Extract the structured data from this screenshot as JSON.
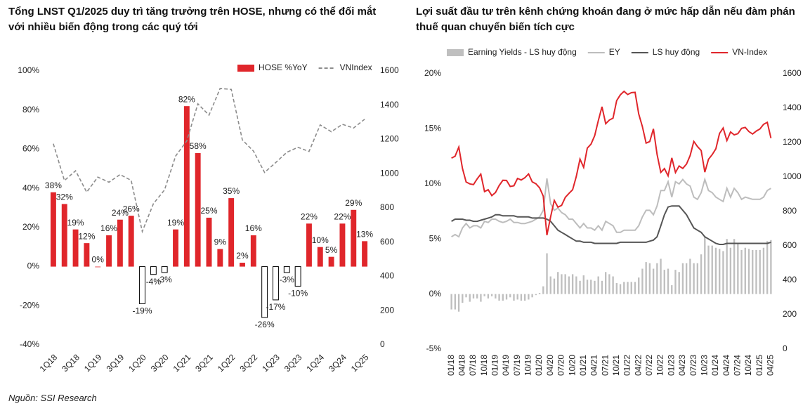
{
  "chart_data": [
    {
      "type": "bar",
      "title": "Tổng LNST Q1/2025 duy trì tăng trưởng trên HOSE, nhưng có thể đối mắt với nhiều biến động trong các quý tới",
      "categories": [
        "1Q18",
        null,
        "3Q18",
        null,
        "1Q19",
        null,
        "3Q19",
        null,
        "1Q20",
        null,
        "3Q20",
        null,
        "1Q21",
        null,
        "3Q21",
        null,
        "1Q22",
        null,
        "3Q22",
        null,
        "1Q23",
        null,
        "3Q23",
        null,
        "1Q24",
        null,
        "3Q24",
        null,
        "1Q25"
      ],
      "series": [
        {
          "name": "HOSE %YoY",
          "type": "bar",
          "color": "#e0262b",
          "negative_fill": "#ffffff",
          "negative_stroke": "#000000",
          "values": [
            38,
            32,
            19,
            12,
            0,
            16,
            24,
            26,
            -19,
            -4,
            -3,
            19,
            82,
            58,
            25,
            9,
            35,
            2,
            16,
            -26,
            -17,
            -3,
            -10,
            22,
            10,
            5,
            22,
            29,
            13
          ],
          "value_labels": [
            "38%",
            "32%",
            "19%",
            "12%",
            "0%",
            "16%",
            "24%",
            "26%",
            "-19%",
            "-4%",
            "-3%",
            "19%",
            "82%",
            "58%",
            "25%",
            "9%",
            "35%",
            "2%",
            "16%",
            "-26%",
            "-17%",
            "-3%",
            "-10%",
            "22%",
            "10%",
            "5%",
            "22%",
            "29%",
            "13%"
          ]
        },
        {
          "name": "VNIndex",
          "type": "line",
          "axis": "y2",
          "color": "#8c8c8c",
          "dash": true,
          "values": [
            1175,
            960,
            1017,
            892,
            980,
            950,
            995,
            961,
            662,
            825,
            905,
            1103,
            1191,
            1408,
            1342,
            1498,
            1492,
            1197,
            1132,
            1007,
            1065,
            1125,
            1154,
            1130,
            1285,
            1245,
            1288,
            1267,
            1318
          ]
        }
      ],
      "ylim": [
        -40,
        100
      ],
      "yticks": [
        {
          "value": -40,
          "label": "-40%"
        },
        {
          "value": -20,
          "label": "-20%"
        },
        {
          "value": 0,
          "label": "0%"
        },
        {
          "value": 20,
          "label": "20%"
        },
        {
          "value": 40,
          "label": "40%"
        },
        {
          "value": 60,
          "label": "60%"
        },
        {
          "value": 80,
          "label": "80%"
        },
        {
          "value": 100,
          "label": "100%"
        }
      ],
      "y2lim": [
        0,
        1600
      ],
      "y2ticks": [
        0,
        200,
        400,
        600,
        800,
        1000,
        1200,
        1400,
        1600
      ],
      "legend": "top-right"
    },
    {
      "type": "combo",
      "title": "Lợi suất đầu tư trên kênh chứng khoán đang ở mức hấp dẫn nếu đàm phán thuế quan chuyển biến tích cực",
      "categories": [
        "01/18",
        null,
        null,
        "04/18",
        null,
        null,
        "07/18",
        null,
        null,
        "10/18",
        null,
        null,
        "01/19",
        null,
        null,
        "04/19",
        null,
        null,
        "07/19",
        null,
        null,
        "10/19",
        null,
        null,
        "01/20",
        null,
        null,
        "04/20",
        null,
        null,
        "07/20",
        null,
        null,
        "10/20",
        null,
        null,
        "01/21",
        null,
        null,
        "04/21",
        null,
        null,
        "07/21",
        null,
        null,
        "10/21",
        null,
        null,
        "01/22",
        null,
        null,
        "04/22",
        null,
        null,
        "07/22",
        null,
        null,
        "10/22",
        null,
        null,
        "01/23",
        null,
        null,
        "04/23",
        null,
        null,
        "07/23",
        null,
        null,
        "10/23",
        null,
        null,
        "01/24",
        null,
        null,
        "04/24",
        null,
        null,
        "07/24",
        null,
        null,
        "10/24",
        null,
        null,
        "01/25",
        null,
        null,
        "04/25"
      ],
      "series": [
        {
          "name": "Earning Yields - LS huy động",
          "type": "bar",
          "color": "#bfbfbf",
          "values": [
            -1.4,
            -1.4,
            -1.6,
            -0.8,
            -0.3,
            -0.7,
            -0.4,
            -0.4,
            -0.7,
            -0.2,
            -0.4,
            -0.2,
            -0.4,
            -0.6,
            -0.6,
            -0.5,
            -0.3,
            -0.6,
            -0.5,
            -0.6,
            -0.6,
            -0.5,
            -0.3,
            -0.1,
            0.1,
            0.7,
            3.7,
            1.6,
            1.4,
            2.0,
            1.8,
            1.8,
            1.6,
            1.8,
            1.6,
            1.2,
            1.7,
            1.3,
            1.3,
            1.2,
            1.6,
            1.2,
            2.0,
            1.8,
            1.6,
            1.0,
            0.9,
            1.1,
            1.1,
            1.1,
            1.1,
            1.5,
            2.3,
            2.9,
            2.8,
            2.3,
            2.8,
            3.2,
            2.2,
            2.3,
            0.8,
            2.2,
            2.0,
            2.8,
            2.8,
            3.2,
            2.8,
            2.8,
            3.6,
            5.2,
            4.4,
            4.4,
            4.2,
            4.1,
            3.9,
            5.0,
            4.2,
            5.0,
            4.6,
            4.0,
            4.2,
            4.1,
            4.0,
            4.0,
            4.0,
            4.2,
            4.8,
            4.9
          ]
        },
        {
          "name": "EY",
          "type": "line",
          "color": "#bdbdbd",
          "values": [
            5.2,
            5.4,
            5.2,
            6.0,
            6.4,
            6.0,
            6.2,
            6.2,
            6.0,
            6.6,
            6.5,
            6.8,
            6.8,
            6.6,
            6.5,
            6.6,
            6.8,
            6.5,
            6.5,
            6.4,
            6.4,
            6.5,
            6.6,
            6.8,
            7.0,
            7.6,
            10.5,
            8.2,
            7.6,
            7.8,
            7.4,
            7.2,
            6.8,
            6.8,
            6.4,
            6.0,
            6.4,
            6.0,
            6.0,
            5.8,
            6.2,
            5.8,
            6.6,
            6.4,
            6.2,
            5.6,
            5.6,
            5.8,
            5.8,
            5.8,
            5.8,
            6.2,
            7.0,
            7.6,
            7.6,
            7.2,
            8.0,
            9.4,
            9.4,
            10.2,
            8.8,
            10.2,
            10.0,
            10.4,
            10.0,
            9.8,
            8.8,
            8.6,
            9.2,
            10.4,
            9.4,
            9.2,
            8.8,
            8.6,
            8.4,
            9.6,
            8.8,
            9.6,
            9.2,
            8.6,
            8.8,
            8.7,
            8.6,
            8.6,
            8.6,
            8.8,
            9.4,
            9.6
          ]
        },
        {
          "name": "LS huy động",
          "type": "line",
          "color": "#555555",
          "values": [
            6.6,
            6.8,
            6.8,
            6.8,
            6.7,
            6.7,
            6.6,
            6.6,
            6.7,
            6.8,
            6.9,
            7.0,
            7.2,
            7.2,
            7.1,
            7.1,
            7.1,
            7.1,
            7.0,
            7.0,
            7.0,
            7.0,
            6.9,
            6.9,
            6.9,
            6.9,
            6.8,
            6.6,
            6.2,
            5.8,
            5.6,
            5.4,
            5.2,
            5.0,
            4.8,
            4.8,
            4.7,
            4.7,
            4.7,
            4.6,
            4.6,
            4.6,
            4.6,
            4.6,
            4.6,
            4.6,
            4.7,
            4.7,
            4.7,
            4.7,
            4.7,
            4.7,
            4.7,
            4.7,
            4.8,
            4.9,
            5.2,
            6.2,
            7.2,
            7.9,
            8.0,
            8.0,
            8.0,
            7.6,
            7.2,
            6.6,
            6.0,
            5.8,
            5.6,
            5.2,
            5.0,
            4.8,
            4.6,
            4.5,
            4.5,
            4.6,
            4.6,
            4.6,
            4.6,
            4.6,
            4.6,
            4.6,
            4.6,
            4.6,
            4.6,
            4.6,
            4.6,
            4.7
          ]
        },
        {
          "name": "VN-Index",
          "type": "line",
          "axis": "y2",
          "color": "#e0262b",
          "values": [
            1110,
            1121,
            1174,
            1050,
            971,
            960,
            956,
            989,
            1017,
            915,
            926,
            892,
            910,
            951,
            981,
            980,
            945,
            949,
            992,
            983,
            996,
            1018,
            972,
            961,
            937,
            889,
            662,
            769,
            864,
            825,
            835,
            882,
            905,
            926,
            1003,
            1104,
            1056,
            1168,
            1191,
            1240,
            1328,
            1408,
            1310,
            1331,
            1342,
            1444,
            1478,
            1498,
            1479,
            1490,
            1492,
            1366,
            1293,
            1197,
            1206,
            1280,
            1132,
            1027,
            1049,
            1007,
            1111,
            1026,
            1064,
            1050,
            1075,
            1125,
            1207,
            1177,
            1154,
            1028,
            1103,
            1130,
            1164,
            1253,
            1285,
            1212,
            1262,
            1245,
            1252,
            1283,
            1288,
            1264,
            1250,
            1267,
            1279,
            1306,
            1318,
            1226
          ]
        }
      ],
      "ylim": [
        -5,
        20
      ],
      "yticks": [
        {
          "value": -5,
          "label": "-5%"
        },
        {
          "value": 0,
          "label": "0%"
        },
        {
          "value": 5,
          "label": "5%"
        },
        {
          "value": 10,
          "label": "10%"
        },
        {
          "value": 15,
          "label": "15%"
        },
        {
          "value": 20,
          "label": "20%"
        }
      ],
      "y2lim": [
        0,
        1600
      ],
      "y2ticks": [
        0,
        200,
        400,
        600,
        800,
        1000,
        1200,
        1400,
        1600
      ],
      "legend": "top"
    }
  ],
  "source": "Nguồn: SSI Research"
}
